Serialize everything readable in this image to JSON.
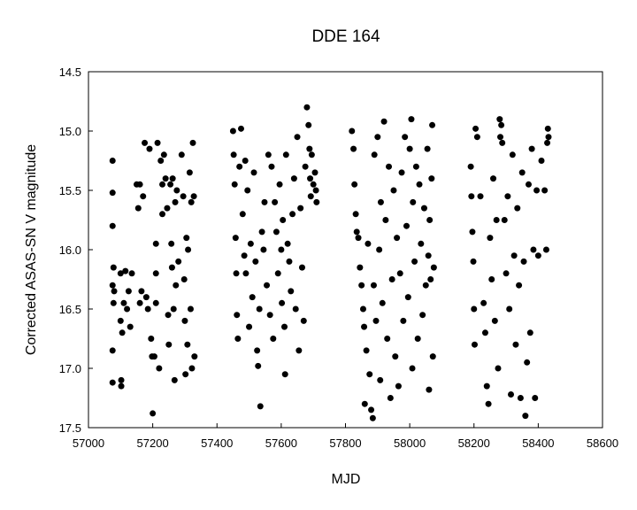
{
  "chart_data": {
    "type": "scatter",
    "title": "DDE 164",
    "x_label": "MJD",
    "y_label": "Corrected ASAS-SN V magnitude",
    "color": "#000000",
    "y_inverted": true,
    "xlim": [
      57000,
      58600
    ],
    "xticks": [
      57000,
      57200,
      57400,
      57600,
      57800,
      58000,
      58200,
      58400,
      58600
    ],
    "ylim": [
      14.5,
      17.5
    ],
    "yticks": [
      14.5,
      {
        "value": 15,
        "label": "15.0"
      },
      15.5,
      {
        "value": 16,
        "label": "16.0"
      },
      16.5,
      {
        "value": 17,
        "label": "17.0"
      },
      17.5
    ],
    "x": [
      57075,
      57075,
      57075,
      57078,
      57075,
      57078,
      57075,
      57075,
      57080,
      57100,
      57100,
      57102,
      57102,
      57105,
      57110,
      57115,
      57120,
      57125,
      57130,
      57135,
      57150,
      57155,
      57160,
      57160,
      57165,
      57170,
      57175,
      57180,
      57185,
      57190,
      57195,
      57198,
      57200,
      57205,
      57210,
      57210,
      57210,
      57215,
      57220,
      57225,
      57230,
      57230,
      57235,
      57240,
      57245,
      57248,
      57250,
      57255,
      57258,
      57260,
      57262,
      57265,
      57268,
      57270,
      57272,
      57275,
      57280,
      57290,
      57295,
      57298,
      57300,
      57302,
      57305,
      57308,
      57310,
      57315,
      57318,
      57320,
      57322,
      57325,
      57328,
      57330,
      57450,
      57452,
      57455,
      57458,
      57460,
      57462,
      57465,
      57470,
      57475,
      57480,
      57485,
      57488,
      57490,
      57495,
      57500,
      57505,
      57510,
      57515,
      57520,
      57525,
      57528,
      57532,
      57535,
      57540,
      57545,
      57548,
      57555,
      57560,
      57565,
      57570,
      57575,
      57580,
      57585,
      57590,
      57595,
      57600,
      57602,
      57605,
      57610,
      57612,
      57615,
      57620,
      57625,
      57630,
      57635,
      57640,
      57645,
      57650,
      57655,
      57660,
      57665,
      57670,
      57675,
      57680,
      57685,
      57688,
      57690,
      57692,
      57695,
      57700,
      57705,
      57708,
      57710,
      57820,
      57825,
      57828,
      57832,
      57835,
      57840,
      57845,
      57850,
      57855,
      57858,
      57860,
      57865,
      57870,
      57875,
      57880,
      57885,
      57888,
      57890,
      57895,
      57900,
      57905,
      57908,
      57910,
      57915,
      57920,
      57925,
      57930,
      57935,
      57940,
      57945,
      57950,
      57955,
      57960,
      57965,
      57970,
      57975,
      57980,
      57985,
      57990,
      57995,
      58000,
      58005,
      58008,
      58010,
      58015,
      58020,
      58025,
      58030,
      58035,
      58040,
      58045,
      58050,
      58055,
      58058,
      58060,
      58062,
      58065,
      58068,
      58070,
      58072,
      58075,
      58190,
      58192,
      58195,
      58198,
      58200,
      58202,
      58205,
      58210,
      58220,
      58230,
      58235,
      58240,
      58245,
      58250,
      58255,
      58260,
      58265,
      58270,
      58275,
      58280,
      58282,
      58285,
      58288,
      58295,
      58300,
      58305,
      58310,
      58315,
      58320,
      58325,
      58330,
      58335,
      58340,
      58345,
      58350,
      58355,
      58360,
      58365,
      58370,
      58375,
      58380,
      58385,
      58390,
      58395,
      58400,
      58410,
      58420,
      58425,
      58428,
      58430,
      58432
    ],
    "values": [
      15.25,
      15.52,
      15.8,
      16.15,
      16.3,
      16.45,
      16.85,
      17.12,
      16.35,
      16.2,
      16.6,
      17.1,
      17.15,
      16.7,
      16.45,
      16.18,
      16.5,
      16.35,
      16.65,
      16.2,
      15.45,
      15.65,
      15.45,
      16.45,
      16.35,
      15.55,
      15.1,
      16.4,
      16.5,
      15.15,
      16.75,
      16.9,
      17.38,
      16.9,
      15.95,
      16.2,
      16.45,
      15.1,
      17.0,
      15.25,
      15.45,
      15.7,
      15.2,
      15.4,
      15.65,
      16.55,
      16.8,
      15.45,
      15.95,
      16.15,
      15.4,
      16.5,
      17.1,
      15.6,
      16.3,
      15.5,
      16.1,
      15.2,
      15.55,
      16.25,
      16.6,
      17.05,
      15.9,
      16.8,
      16.0,
      15.35,
      16.5,
      15.6,
      17.0,
      15.1,
      15.55,
      16.9,
      15.0,
      15.2,
      15.45,
      15.9,
      16.2,
      16.55,
      16.75,
      15.3,
      14.98,
      15.7,
      16.05,
      15.25,
      16.2,
      15.5,
      16.65,
      15.95,
      16.4,
      15.35,
      16.1,
      16.85,
      16.98,
      16.5,
      17.32,
      15.85,
      16.0,
      15.6,
      16.3,
      15.2,
      16.55,
      15.3,
      16.75,
      15.6,
      15.85,
      16.2,
      15.45,
      16.0,
      16.45,
      15.75,
      16.65,
      17.05,
      15.2,
      15.95,
      16.1,
      16.35,
      15.7,
      15.4,
      16.5,
      15.05,
      16.85,
      15.65,
      16.15,
      16.6,
      15.3,
      14.8,
      14.95,
      15.15,
      15.4,
      15.55,
      15.2,
      15.45,
      15.35,
      15.5,
      15.6,
      15.0,
      15.15,
      15.45,
      15.7,
      15.85,
      15.9,
      16.15,
      16.3,
      16.5,
      16.65,
      17.3,
      16.85,
      15.95,
      17.05,
      17.35,
      17.42,
      16.3,
      15.2,
      16.6,
      15.05,
      16.0,
      17.1,
      15.6,
      16.45,
      14.92,
      15.75,
      16.75,
      15.3,
      17.25,
      16.25,
      15.5,
      16.9,
      15.9,
      17.15,
      16.2,
      15.35,
      16.6,
      15.05,
      15.8,
      16.4,
      15.15,
      14.9,
      17.0,
      15.6,
      16.1,
      15.3,
      16.75,
      15.45,
      15.95,
      16.55,
      15.65,
      16.3,
      15.15,
      16.05,
      17.18,
      15.75,
      16.25,
      15.4,
      14.95,
      16.9,
      16.15,
      15.3,
      15.55,
      15.85,
      16.1,
      16.5,
      16.8,
      14.98,
      15.05,
      15.55,
      16.45,
      16.7,
      17.15,
      17.3,
      15.9,
      16.25,
      15.4,
      16.6,
      15.75,
      17.0,
      14.9,
      15.05,
      14.95,
      15.1,
      15.75,
      16.2,
      15.55,
      16.5,
      17.22,
      15.2,
      16.05,
      16.8,
      15.65,
      16.3,
      17.25,
      15.35,
      16.1,
      17.4,
      16.95,
      15.45,
      16.7,
      15.15,
      16.0,
      17.25,
      15.5,
      16.05,
      15.25,
      15.5,
      16.0,
      15.1,
      14.98,
      15.05
    ]
  }
}
